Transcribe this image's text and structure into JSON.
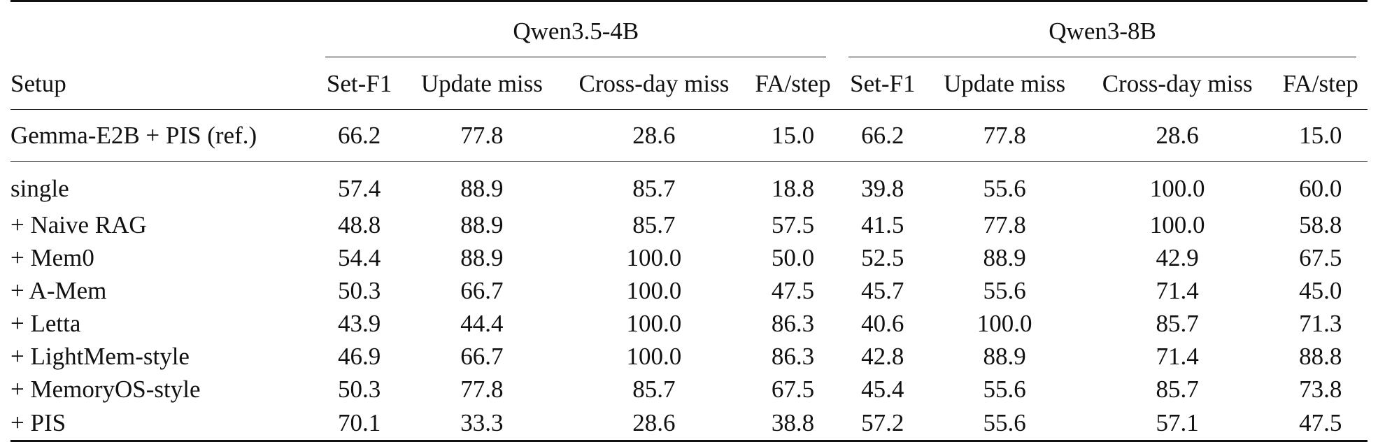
{
  "table": {
    "group_headers": [
      "Qwen3.5-4B",
      "Qwen3-8B"
    ],
    "row_header_label": "Setup",
    "column_headers": [
      "Set-F1",
      "Update miss",
      "Cross-day miss",
      "FA/step",
      "Set-F1",
      "Update miss",
      "Cross-day miss",
      "FA/step"
    ],
    "reference_row": {
      "label": "Gemma-E2B + PIS (ref.)",
      "values": [
        "66.2",
        "77.8",
        "28.6",
        "15.0",
        "66.2",
        "77.8",
        "28.6",
        "15.0"
      ]
    },
    "rows": [
      {
        "label": "single",
        "values": [
          "57.4",
          "88.9",
          "85.7",
          "18.8",
          "39.8",
          "55.6",
          "100.0",
          "60.0"
        ]
      },
      {
        "label": "+ Naive RAG",
        "values": [
          "48.8",
          "88.9",
          "85.7",
          "57.5",
          "41.5",
          "77.8",
          "100.0",
          "58.8"
        ]
      },
      {
        "label": "+ Mem0",
        "values": [
          "54.4",
          "88.9",
          "100.0",
          "50.0",
          "52.5",
          "88.9",
          "42.9",
          "67.5"
        ]
      },
      {
        "label": "+ A-Mem",
        "values": [
          "50.3",
          "66.7",
          "100.0",
          "47.5",
          "45.7",
          "55.6",
          "71.4",
          "45.0"
        ]
      },
      {
        "label": "+ Letta",
        "values": [
          "43.9",
          "44.4",
          "100.0",
          "86.3",
          "40.6",
          "100.0",
          "85.7",
          "71.3"
        ]
      },
      {
        "label": "+ LightMem-style",
        "values": [
          "46.9",
          "66.7",
          "100.0",
          "86.3",
          "42.8",
          "88.9",
          "71.4",
          "88.8"
        ]
      },
      {
        "label": "+ MemoryOS-style",
        "values": [
          "50.3",
          "77.8",
          "85.7",
          "67.5",
          "45.4",
          "55.6",
          "85.7",
          "73.8"
        ]
      },
      {
        "label": "+ PIS",
        "values": [
          "70.1",
          "33.3",
          "28.6",
          "38.8",
          "57.2",
          "55.6",
          "57.1",
          "47.5"
        ]
      }
    ]
  }
}
